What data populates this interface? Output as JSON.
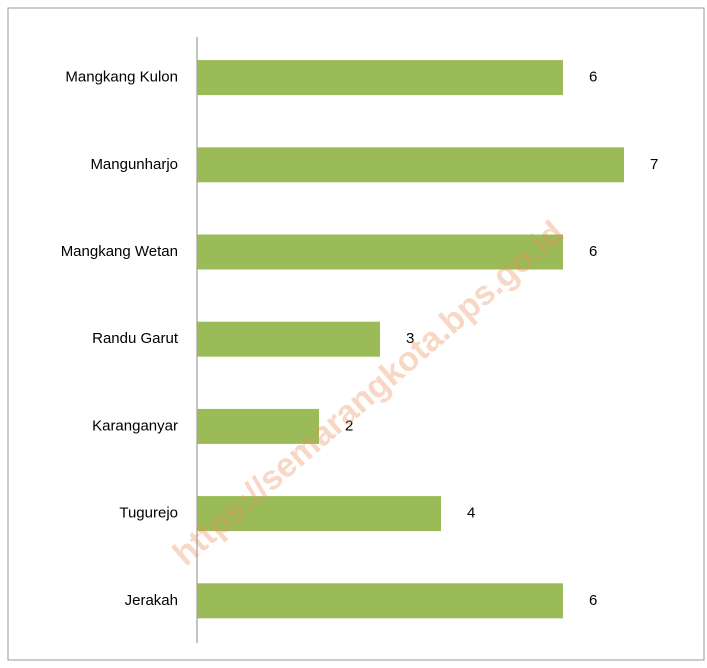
{
  "chart_data": {
    "type": "bar",
    "orientation": "horizontal",
    "categories": [
      "Mangkang Kulon",
      "Mangunharjo",
      "Mangkang Wetan",
      "Randu Garut",
      "Karanganyar",
      "Tugurejo",
      "Jerakah"
    ],
    "values": [
      6,
      7,
      6,
      3,
      2,
      4,
      6
    ],
    "color": "#9bbb59",
    "watermark": "https://semarangkota.bps.go.id"
  }
}
